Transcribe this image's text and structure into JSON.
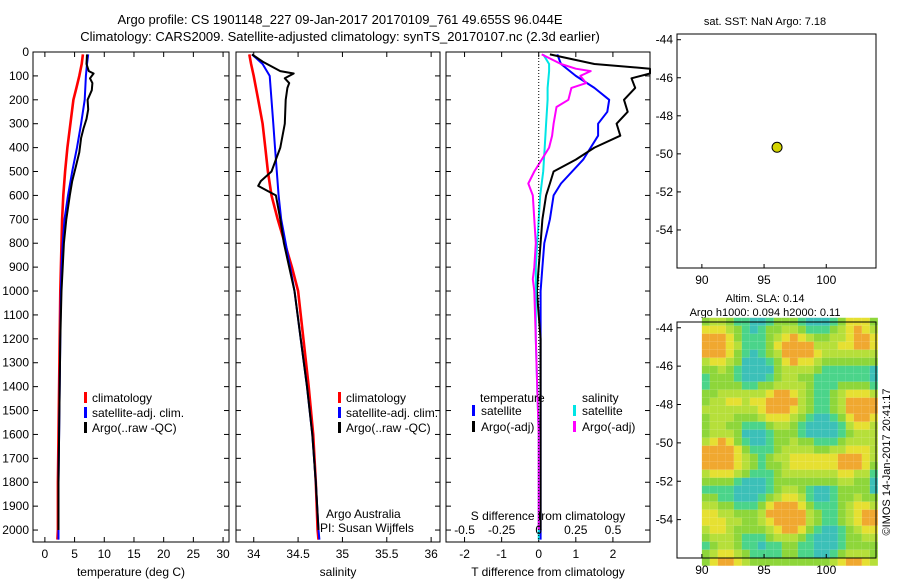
{
  "header": {
    "line1": "Argo profile: CS 1901148_227 09-Jan-2017 20170109_761 49.655S 96.044E",
    "line2": "Climatology: CARS2009. Satellite-adjusted climatology: synTS_20170107.nc (2.3d earlier)"
  },
  "colors": {
    "climatology": "#ff0000",
    "satellite": "#0000ff",
    "argo": "#000000",
    "satellite_salinity": "#00e5e5",
    "argo_salinity": "#ff00ff",
    "marker": "#d4d400"
  },
  "chart_data": [
    {
      "type": "line",
      "title": "",
      "xlabel": "temperature (deg C)",
      "ylabel": "",
      "xlim": [
        -2,
        31
      ],
      "ylim": [
        2050,
        0
      ],
      "xticks": [
        "0",
        "5",
        "10",
        "15",
        "20",
        "25",
        "30"
      ],
      "xtick_values": [
        0,
        5,
        10,
        15,
        20,
        25,
        30
      ],
      "yticks": [
        "0",
        "100",
        "200",
        "300",
        "400",
        "500",
        "600",
        "700",
        "800",
        "900",
        "1000",
        "1100",
        "1200",
        "1300",
        "1400",
        "1500",
        "1600",
        "1700",
        "1800",
        "1900",
        "2000"
      ],
      "ytick_values": [
        0,
        100,
        200,
        300,
        400,
        500,
        600,
        700,
        800,
        900,
        1000,
        1100,
        1200,
        1300,
        1400,
        1500,
        1600,
        1700,
        1800,
        1900,
        2000
      ],
      "legend": [
        "climatology",
        "satellite-adj. clim.",
        "Argo(..raw -QC)"
      ],
      "series": [
        {
          "name": "climatology",
          "points": [
            [
              6.4,
              10
            ],
            [
              6.2,
              50
            ],
            [
              5.8,
              100
            ],
            [
              5.3,
              150
            ],
            [
              4.8,
              200
            ],
            [
              4.3,
              300
            ],
            [
              3.8,
              400
            ],
            [
              3.4,
              500
            ],
            [
              3.1,
              600
            ],
            [
              2.9,
              700
            ],
            [
              2.8,
              800
            ],
            [
              2.7,
              900
            ],
            [
              2.6,
              1000
            ],
            [
              2.5,
              1200
            ],
            [
              2.4,
              1400
            ],
            [
              2.3,
              1600
            ],
            [
              2.2,
              1800
            ],
            [
              2.2,
              2000
            ],
            [
              2.1,
              2040
            ]
          ]
        },
        {
          "name": "satellite-adj. clim.",
          "points": [
            [
              7.3,
              10
            ],
            [
              7.1,
              50
            ],
            [
              6.9,
              100
            ],
            [
              6.7,
              200
            ],
            [
              6.1,
              300
            ],
            [
              5.4,
              400
            ],
            [
              4.6,
              500
            ],
            [
              3.9,
              600
            ],
            [
              3.3,
              700
            ],
            [
              3.0,
              800
            ],
            [
              2.8,
              900
            ],
            [
              2.7,
              1000
            ],
            [
              2.6,
              1200
            ],
            [
              2.5,
              1400
            ],
            [
              2.4,
              1600
            ],
            [
              2.3,
              1800
            ],
            [
              2.3,
              2000
            ],
            [
              2.3,
              2040
            ]
          ]
        },
        {
          "name": "Argo(..raw -QC)",
          "points": [
            [
              7.1,
              10
            ],
            [
              7.0,
              50
            ],
            [
              7.4,
              80
            ],
            [
              8.2,
              90
            ],
            [
              7.6,
              110
            ],
            [
              8.0,
              130
            ],
            [
              7.9,
              160
            ],
            [
              7.2,
              200
            ],
            [
              7.3,
              240
            ],
            [
              7.0,
              280
            ],
            [
              6.5,
              320
            ],
            [
              6.1,
              360
            ],
            [
              5.8,
              420
            ],
            [
              5.2,
              480
            ],
            [
              4.6,
              540
            ],
            [
              4.2,
              600
            ],
            [
              3.6,
              700
            ],
            [
              3.2,
              800
            ],
            [
              3.0,
              900
            ],
            [
              2.8,
              1000
            ],
            [
              2.7,
              1100
            ],
            [
              2.6,
              1200
            ],
            [
              2.5,
              1400
            ],
            [
              2.4,
              1600
            ],
            [
              2.3,
              1800
            ],
            [
              2.3,
              2000
            ]
          ]
        }
      ]
    },
    {
      "type": "line",
      "title": "",
      "xlabel": "salinity",
      "ylabel": "",
      "xlim": [
        33.8,
        36.1
      ],
      "ylim": [
        2050,
        0
      ],
      "xticks": [
        "34",
        "34.5",
        "35",
        "35.5",
        "36"
      ],
      "xtick_values": [
        34,
        34.5,
        35,
        35.5,
        36
      ],
      "legend": [
        "climatology",
        "satellite-adj. clim.",
        "Argo(..raw -QC)"
      ],
      "annotations": [
        "Argo Australia",
        "PI: Susan Wijffels"
      ],
      "series": [
        {
          "name": "climatology",
          "points": [
            [
              33.95,
              10
            ],
            [
              33.97,
              50
            ],
            [
              34.0,
              100
            ],
            [
              34.05,
              200
            ],
            [
              34.1,
              300
            ],
            [
              34.13,
              400
            ],
            [
              34.16,
              500
            ],
            [
              34.2,
              600
            ],
            [
              34.27,
              700
            ],
            [
              34.35,
              800
            ],
            [
              34.43,
              900
            ],
            [
              34.5,
              1000
            ],
            [
              34.56,
              1200
            ],
            [
              34.62,
              1400
            ],
            [
              34.67,
              1600
            ],
            [
              34.7,
              1800
            ],
            [
              34.72,
              2000
            ],
            [
              34.73,
              2040
            ]
          ]
        },
        {
          "name": "satellite-adj. clim.",
          "points": [
            [
              33.98,
              10
            ],
            [
              34.1,
              50
            ],
            [
              34.18,
              100
            ],
            [
              34.2,
              200
            ],
            [
              34.22,
              300
            ],
            [
              34.24,
              400
            ],
            [
              34.26,
              500
            ],
            [
              34.28,
              600
            ],
            [
              34.31,
              700
            ],
            [
              34.36,
              800
            ],
            [
              34.41,
              900
            ],
            [
              34.46,
              1000
            ],
            [
              34.53,
              1200
            ],
            [
              34.6,
              1400
            ],
            [
              34.66,
              1600
            ],
            [
              34.7,
              1800
            ],
            [
              34.73,
              2000
            ],
            [
              34.74,
              2040
            ]
          ]
        },
        {
          "name": "Argo(..raw -QC)",
          "points": [
            [
              33.98,
              10
            ],
            [
              34.1,
              40
            ],
            [
              34.3,
              80
            ],
            [
              34.45,
              90
            ],
            [
              34.35,
              110
            ],
            [
              34.4,
              130
            ],
            [
              34.38,
              150
            ],
            [
              34.36,
              200
            ],
            [
              34.35,
              300
            ],
            [
              34.3,
              400
            ],
            [
              34.2,
              500
            ],
            [
              34.08,
              540
            ],
            [
              34.05,
              560
            ],
            [
              34.15,
              580
            ],
            [
              34.25,
              600
            ],
            [
              34.3,
              700
            ],
            [
              34.34,
              800
            ],
            [
              34.4,
              900
            ],
            [
              34.46,
              1000
            ],
            [
              34.53,
              1200
            ],
            [
              34.6,
              1400
            ],
            [
              34.66,
              1600
            ],
            [
              34.7,
              1800
            ],
            [
              34.73,
              2000
            ]
          ]
        }
      ]
    },
    {
      "type": "line",
      "title": "",
      "xlabel": "T difference from climatology",
      "x2label": "S difference from climatology",
      "ylabel": "",
      "xlim": [
        -2.5,
        3
      ],
      "x2lim": [
        -0.625,
        0.75
      ],
      "ylim": [
        2050,
        0
      ],
      "xticks": [
        "-2",
        "-1",
        "0",
        "1",
        "2"
      ],
      "xtick_values": [
        -2,
        -1,
        0,
        1,
        2
      ],
      "x2ticks": [
        "-0.5",
        "-0.25",
        "0",
        "0.25",
        "0.5"
      ],
      "x2tick_values": [
        -0.5,
        -0.25,
        0,
        0.25,
        0.5
      ],
      "legend_groups": [
        "temperature",
        "salinity"
      ],
      "legend": [
        "satellite",
        "Argo(-adj)",
        "satellite",
        "Argo(-adj)"
      ],
      "series": [
        {
          "name": "temperature satellite",
          "points": [
            [
              0.5,
              10
            ],
            [
              0.6,
              50
            ],
            [
              1.0,
              100
            ],
            [
              1.5,
              150
            ],
            [
              1.9,
              200
            ],
            [
              1.85,
              250
            ],
            [
              1.6,
              300
            ],
            [
              1.6,
              350
            ],
            [
              1.2,
              450
            ],
            [
              0.6,
              550
            ],
            [
              0.4,
              600
            ],
            [
              0.3,
              700
            ],
            [
              0.15,
              800
            ],
            [
              0.1,
              900
            ],
            [
              0.05,
              1000
            ],
            [
              0.05,
              1200
            ],
            [
              0.05,
              1400
            ],
            [
              0.05,
              1600
            ],
            [
              0.05,
              1800
            ],
            [
              0.05,
              2000
            ],
            [
              0.05,
              2040
            ]
          ]
        },
        {
          "name": "temperature Argo(-adj)",
          "points": [
            [
              0.3,
              10
            ],
            [
              1.5,
              50
            ],
            [
              3.0,
              70
            ],
            [
              3.0,
              90
            ],
            [
              2.5,
              110
            ],
            [
              2.6,
              150
            ],
            [
              2.3,
              200
            ],
            [
              2.4,
              250
            ],
            [
              2.1,
              300
            ],
            [
              2.2,
              350
            ],
            [
              1.5,
              400
            ],
            [
              1.0,
              450
            ],
            [
              0.4,
              500
            ],
            [
              0.3,
              550
            ],
            [
              0.2,
              600
            ],
            [
              0.1,
              700
            ],
            [
              0.05,
              800
            ],
            [
              0.0,
              900
            ],
            [
              -0.05,
              1000
            ],
            [
              0.0,
              1100
            ],
            [
              0.05,
              1200
            ],
            [
              0.05,
              1400
            ],
            [
              0.05,
              1600
            ],
            [
              0.05,
              1800
            ],
            [
              0.05,
              2000
            ]
          ]
        },
        {
          "name": "salinity satellite",
          "points": [
            [
              0.03,
              10
            ],
            [
              0.07,
              50
            ],
            [
              0.07,
              80
            ],
            [
              0.06,
              150
            ],
            [
              0.06,
              200
            ],
            [
              0.05,
              300
            ],
            [
              0.04,
              400
            ],
            [
              0.03,
              500
            ],
            [
              0.01,
              600
            ],
            [
              0.0,
              700
            ],
            [
              -0.01,
              800
            ],
            [
              -0.02,
              900
            ],
            [
              -0.02,
              1000
            ],
            [
              -0.02,
              1200
            ],
            [
              -0.01,
              1400
            ],
            [
              0.0,
              1600
            ],
            [
              0.0,
              1800
            ],
            [
              0.0,
              2000
            ],
            [
              0.0,
              2040
            ]
          ]
        },
        {
          "name": "salinity Argo(-adj)",
          "points": [
            [
              0.02,
              10
            ],
            [
              0.15,
              50
            ],
            [
              0.25,
              70
            ],
            [
              0.35,
              80
            ],
            [
              0.28,
              100
            ],
            [
              0.32,
              130
            ],
            [
              0.22,
              150
            ],
            [
              0.2,
              200
            ],
            [
              0.12,
              230
            ],
            [
              0.1,
              300
            ],
            [
              0.09,
              350
            ],
            [
              0.07,
              400
            ],
            [
              0.02,
              450
            ],
            [
              -0.03,
              500
            ],
            [
              -0.07,
              550
            ],
            [
              -0.04,
              600
            ],
            [
              -0.03,
              700
            ],
            [
              -0.02,
              800
            ],
            [
              -0.03,
              900
            ],
            [
              -0.04,
              950
            ],
            [
              -0.03,
              1000
            ],
            [
              -0.02,
              1200
            ],
            [
              -0.01,
              1400
            ],
            [
              0.0,
              1600
            ],
            [
              0.0,
              1800
            ],
            [
              0.0,
              2000
            ]
          ]
        }
      ]
    },
    {
      "type": "scatter",
      "title": "sat. SST: NaN Argo: 7.18",
      "xlim": [
        88,
        104
      ],
      "ylim": [
        -56,
        -43.7
      ],
      "xticks": [
        "90",
        "95",
        "100"
      ],
      "xtick_values": [
        90,
        95,
        100
      ],
      "yticks": [
        "-44",
        "-46",
        "-48",
        "-50",
        "-52",
        "-54"
      ],
      "ytick_values": [
        -44,
        -46,
        -48,
        -50,
        -52,
        -54
      ],
      "points": [
        [
          96.044,
          -49.655
        ]
      ]
    },
    {
      "type": "heatmap",
      "title_line1": "Altim. SLA: 0.14",
      "title_line2": "Argo h1000: 0.094 h2000: 0.11",
      "side_label": "©IMOS 14-Jan-2017 20:41:17",
      "xlim": [
        88,
        104
      ],
      "ylim": [
        -56,
        -43.7
      ],
      "xticks": [
        "90",
        "95",
        "100"
      ],
      "xtick_values": [
        90,
        95,
        100
      ],
      "yticks": [
        "-44",
        "-46",
        "-48",
        "-50",
        "-52",
        "-54"
      ],
      "ytick_values": [
        -44,
        -46,
        -48,
        -50,
        -52,
        -54
      ]
    }
  ]
}
